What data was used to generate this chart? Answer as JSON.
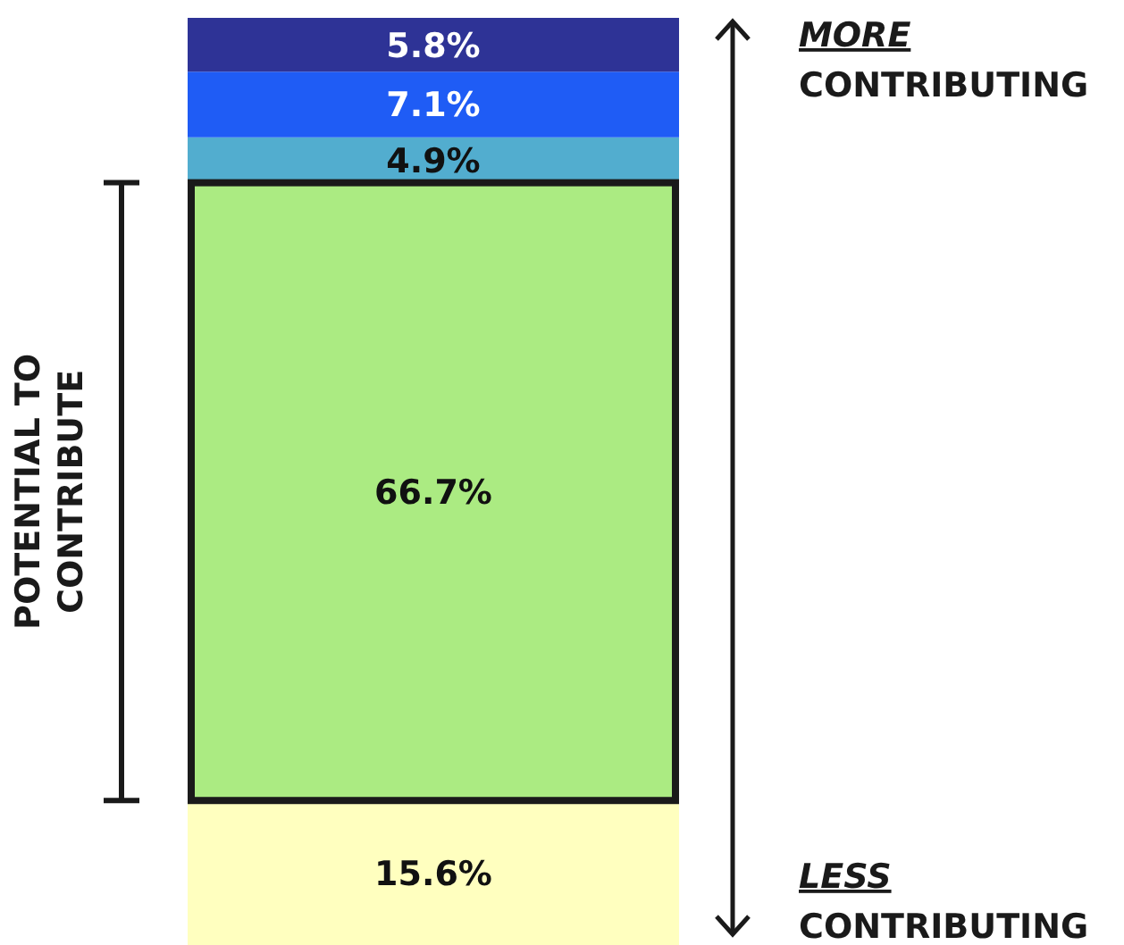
{
  "chart_data": {
    "type": "bar",
    "stacked": true,
    "categories": [
      null
    ],
    "series": [
      {
        "color": "#ffffbf",
        "values": [
          15.6
        ],
        "value_labels": [
          "15.6%"
        ]
      },
      {
        "color": "#abeb82",
        "values": [
          66.7
        ],
        "value_labels": [
          "66.7%"
        ]
      },
      {
        "color": "#52adcf",
        "values": [
          4.9
        ],
        "value_labels": [
          "4.9%"
        ]
      },
      {
        "color": "#1f5cf5",
        "values": [
          7.1
        ],
        "value_labels": [
          "7.1%"
        ]
      },
      {
        "color": "#2e3396",
        "values": [
          5.8
        ],
        "value_labels": [
          "5.8%"
        ]
      }
    ],
    "annotations": [
      "POTENTIAL TO CONTRIBUTE",
      "MORE CONTRIBUTING",
      "LESS CONTRIBUTING"
    ]
  }
}
